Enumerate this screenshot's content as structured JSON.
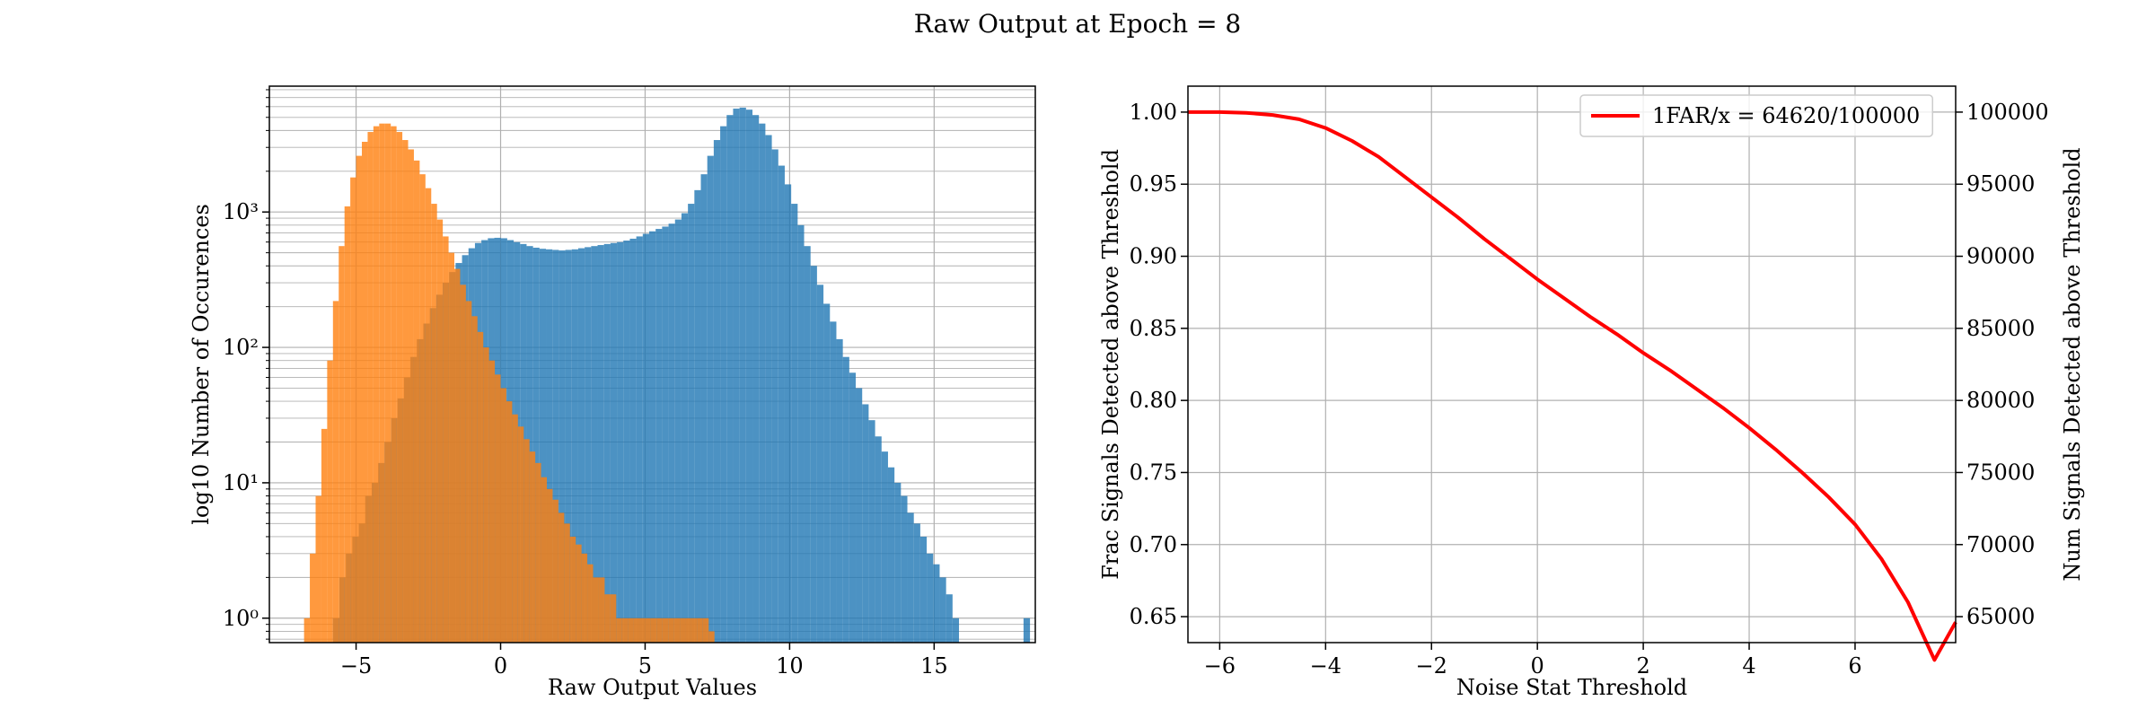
{
  "suptitle": "Raw Output at Epoch = 8",
  "colors": {
    "blue": "#1f77b4",
    "orange": "#ff7f0e",
    "red": "#ff0000",
    "grid": "#b0b0b0"
  },
  "chart_data": [
    {
      "type": "histogram",
      "xlabel": "Raw Output Values",
      "ylabel": "log10 Number of Occurences",
      "xlim": [
        -8.0,
        18.5
      ],
      "ylim": [
        0.66,
        8500
      ],
      "yscale": "log",
      "xticks": [
        -5,
        0,
        5,
        10,
        15
      ],
      "xtick_labels": [
        "−5",
        "0",
        "5",
        "10",
        "15"
      ],
      "yticks": [
        1,
        10,
        100,
        1000
      ],
      "ytick_labels": [
        "10⁰",
        "10¹",
        "10²",
        "10³"
      ],
      "grid": true,
      "series": [
        {
          "color": "blue",
          "alpha": 0.8,
          "bin_edges_start": -5.8,
          "bin_width": 0.2233,
          "counts": [
            1,
            2,
            3,
            4,
            5,
            8,
            10,
            14,
            20,
            30,
            42,
            60,
            85,
            115,
            150,
            195,
            245,
            300,
            360,
            420,
            480,
            540,
            590,
            620,
            640,
            645,
            640,
            620,
            600,
            580,
            560,
            545,
            535,
            530,
            525,
            520,
            525,
            530,
            540,
            550,
            560,
            570,
            580,
            590,
            600,
            615,
            635,
            660,
            690,
            720,
            750,
            780,
            820,
            880,
            980,
            1150,
            1450,
            1900,
            2600,
            3400,
            4300,
            5200,
            5800,
            5900,
            5700,
            5200,
            4500,
            3700,
            2900,
            2200,
            1600,
            1150,
            800,
            560,
            400,
            290,
            210,
            155,
            115,
            85,
            65,
            50,
            38,
            29,
            22,
            17,
            13,
            10,
            8,
            6,
            5,
            4,
            3,
            2.5,
            2,
            1.5,
            1,
            0,
            0,
            0,
            0,
            0,
            0,
            0,
            0,
            0,
            0,
            1
          ]
        },
        {
          "color": "orange",
          "alpha": 0.8,
          "bin_edges_start": -6.8,
          "bin_width": 0.2,
          "counts": [
            1,
            3,
            8,
            25,
            80,
            220,
            560,
            1100,
            1800,
            2600,
            3300,
            3900,
            4300,
            4500,
            4500,
            4300,
            3900,
            3400,
            2900,
            2400,
            1900,
            1500,
            1150,
            880,
            660,
            500,
            380,
            290,
            220,
            170,
            130,
            100,
            80,
            63,
            50,
            40,
            32,
            26,
            21,
            17,
            14,
            11,
            9,
            7.5,
            6,
            5,
            4,
            3.5,
            3,
            2.5,
            2,
            2,
            1.5,
            1.5,
            1,
            1,
            1,
            1,
            1,
            1,
            1,
            1,
            1,
            1,
            1,
            1,
            1,
            1,
            1,
            1,
            0.8
          ]
        }
      ]
    },
    {
      "type": "line",
      "xlabel": "Noise Stat Threshold",
      "ylabel": "Frac Signals Detected above Threshold",
      "ylabel_right": "Num Signals Detected above Threshold",
      "xlim": [
        -6.6,
        7.9
      ],
      "ylim": [
        0.632,
        1.018
      ],
      "ylim_right": [
        63200,
        101800
      ],
      "xticks": [
        -6,
        -4,
        -2,
        0,
        2,
        4,
        6
      ],
      "xtick_labels": [
        "−6",
        "−4",
        "−2",
        "0",
        "2",
        "4",
        "6"
      ],
      "yticks": [
        0.65,
        0.7,
        0.75,
        0.8,
        0.85,
        0.9,
        0.95,
        1.0
      ],
      "ytick_labels": [
        "0.65",
        "0.70",
        "0.75",
        "0.80",
        "0.85",
        "0.90",
        "0.95",
        "1.00"
      ],
      "yticks_right": [
        65000,
        70000,
        75000,
        80000,
        85000,
        90000,
        95000,
        100000
      ],
      "ytick_labels_right": [
        "65000",
        "70000",
        "75000",
        "80000",
        "85000",
        "90000",
        "95000",
        "100000"
      ],
      "grid": true,
      "legend": "top-right",
      "series": [
        {
          "name": "1FAR/x = 64620/100000",
          "color": "red",
          "x": [
            -6.6,
            -6.0,
            -5.5,
            -5.0,
            -4.5,
            -4.0,
            -3.5,
            -3.0,
            -2.5,
            -2.0,
            -1.5,
            -1.0,
            -0.5,
            0.0,
            0.5,
            1.0,
            1.5,
            2.0,
            2.5,
            3.0,
            3.5,
            4.0,
            4.5,
            5.0,
            5.5,
            6.0,
            6.5,
            7.0,
            7.5,
            7.9
          ],
          "y": [
            1.0,
            1.0,
            0.9995,
            0.998,
            0.995,
            0.989,
            0.98,
            0.969,
            0.955,
            0.941,
            0.927,
            0.912,
            0.898,
            0.884,
            0.871,
            0.858,
            0.846,
            0.833,
            0.821,
            0.808,
            0.795,
            0.781,
            0.766,
            0.75,
            0.733,
            0.714,
            0.69,
            0.66,
            0.62,
            0.6462
          ]
        }
      ]
    }
  ]
}
